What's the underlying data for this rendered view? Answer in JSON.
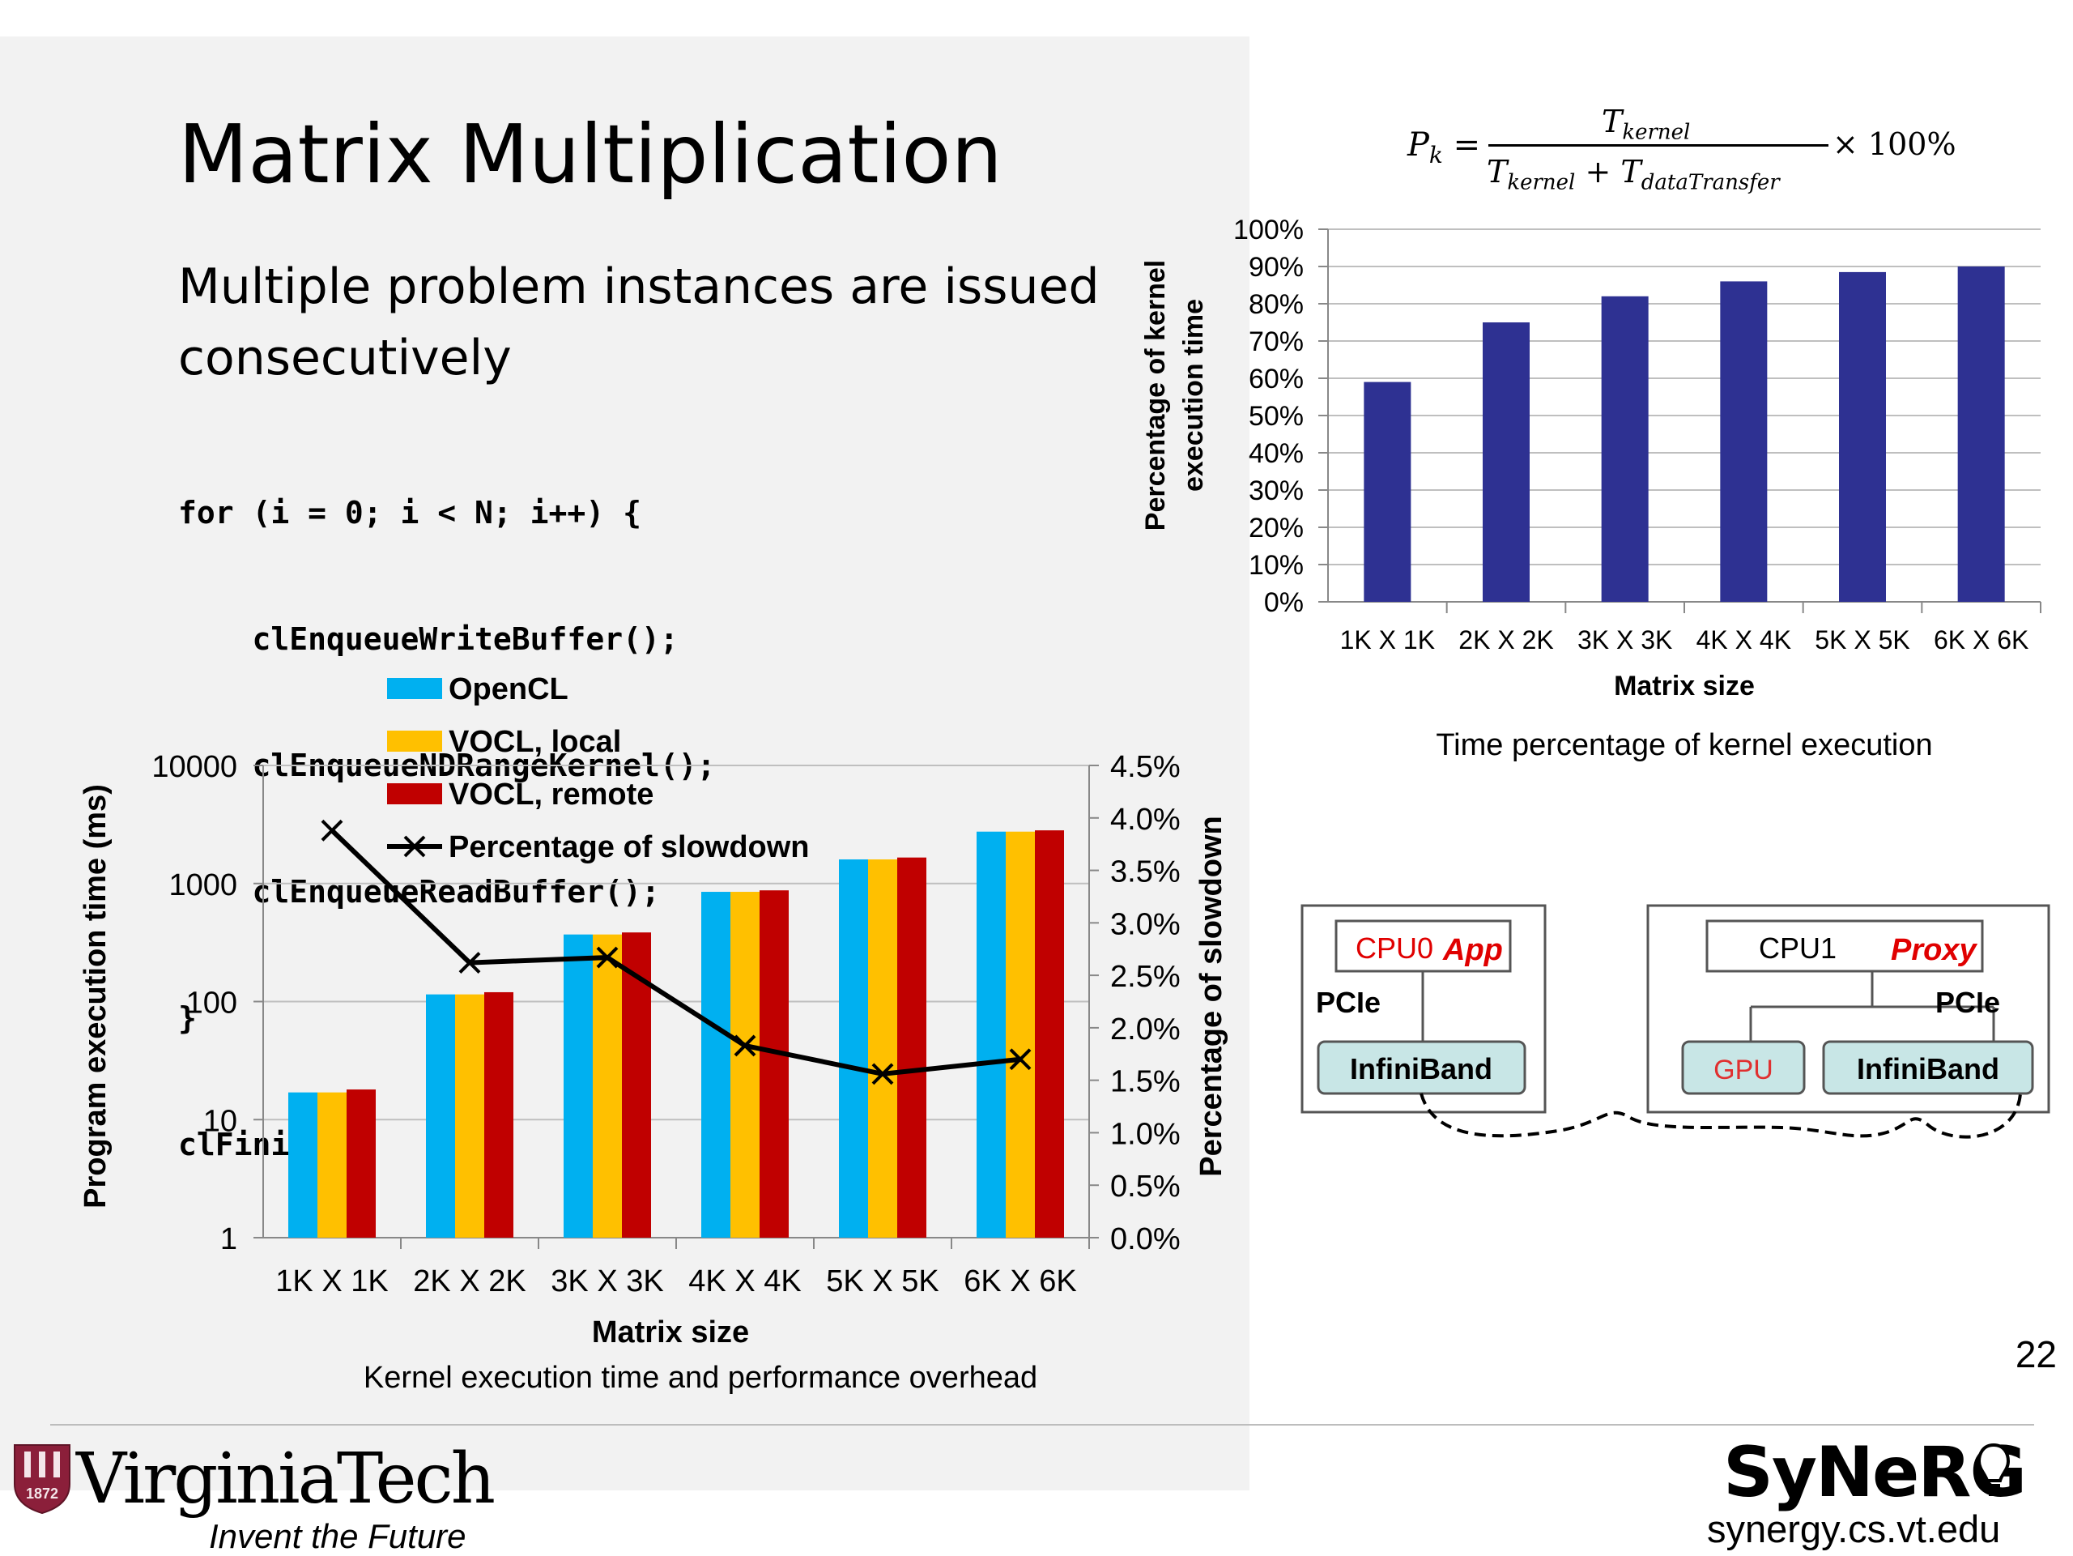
{
  "slide": {
    "title": "Matrix Multiplication",
    "subtitle": "Multiple problem instances are issued consecutively",
    "code_lines": [
      "for (i = 0; i < N; i++) {",
      "    clEnqueueWriteBuffer();",
      "    clEnqueueNDRangeKernel();",
      "    clEnqueueReadBuffer();",
      "}",
      "clFinish();"
    ],
    "page_number": "22",
    "footer": {
      "university": "VirginiaTech",
      "university_year": "1872",
      "tagline": "Invent the Future",
      "lab": "SyNeRG",
      "lab_url": "synergy.cs.vt.edu"
    }
  },
  "formula": {
    "lhs": "P",
    "lhs_sub": "k",
    "num": "T",
    "num_sub": "kernel",
    "den_a": "T",
    "den_a_sub": "kernel",
    "den_plus": "+",
    "den_b": "T",
    "den_b_sub": "dataTransfer",
    "suffix": "× 100%"
  },
  "diagram": {
    "left_box": {
      "cpu": "CPU0",
      "role": "App",
      "bus": "PCIe",
      "nic": "InfiniBand"
    },
    "right_box": {
      "cpu": "CPU1",
      "role": "Proxy",
      "bus": "PCIe",
      "gpu": "GPU",
      "nic": "InfiniBand"
    },
    "colors": {
      "role_text": "#e00000",
      "nic_fill": "#c8e6e6",
      "gpu_text": "#e03030"
    }
  },
  "chart_data": [
    {
      "type": "bar",
      "title": "",
      "caption": "Kernel execution time and performance overhead",
      "categories": [
        "1K X 1K",
        "2K X 2K",
        "3K X 3K",
        "4K X 4K",
        "5K X 5K",
        "6K X 6K"
      ],
      "xlabel": "Matrix size",
      "ylabel": "Program execution time (ms)",
      "y2label": "Percentage of slowdown",
      "yscale": "log",
      "ylim": [
        1,
        10000
      ],
      "y_ticks": [
        "1",
        "10",
        "100",
        "1000",
        "10000"
      ],
      "y2lim": [
        0,
        4.5
      ],
      "y2_ticks": [
        "0.0%",
        "0.5%",
        "1.0%",
        "1.5%",
        "2.0%",
        "2.5%",
        "3.0%",
        "3.5%",
        "4.0%",
        "4.5%"
      ],
      "grid": true,
      "legend_position": "top-left",
      "series": [
        {
          "name": "OpenCL",
          "color": "#00b0f0",
          "values": [
            17,
            115,
            370,
            850,
            1600,
            2750
          ]
        },
        {
          "name": "VOCL, local",
          "color": "#ffc000",
          "values": [
            17,
            115,
            370,
            850,
            1600,
            2750
          ]
        },
        {
          "name": "VOCL, remote",
          "color": "#c00000",
          "values": [
            18,
            120,
            385,
            875,
            1660,
            2820
          ]
        },
        {
          "name": "Percentage of slowdown",
          "type": "line",
          "axis": "right",
          "color": "#000000",
          "marker": "x",
          "values": [
            3.88,
            2.62,
            2.67,
            1.83,
            1.56,
            1.7
          ]
        }
      ]
    },
    {
      "type": "bar",
      "title": "",
      "caption": "Time percentage of kernel execution",
      "categories": [
        "1K X 1K",
        "2K X 2K",
        "3K X 3K",
        "4K X 4K",
        "5K X 5K",
        "6K X 6K"
      ],
      "xlabel": "Matrix size",
      "ylabel": "Percentage of kernel execution time",
      "ylim": [
        0,
        100
      ],
      "y_ticks": [
        "0%",
        "10%",
        "20%",
        "30%",
        "40%",
        "50%",
        "60%",
        "70%",
        "80%",
        "90%",
        "100%"
      ],
      "grid": true,
      "series": [
        {
          "color": "#2e3192",
          "values": [
            59,
            75,
            82,
            86,
            88.5,
            90
          ]
        }
      ]
    }
  ]
}
